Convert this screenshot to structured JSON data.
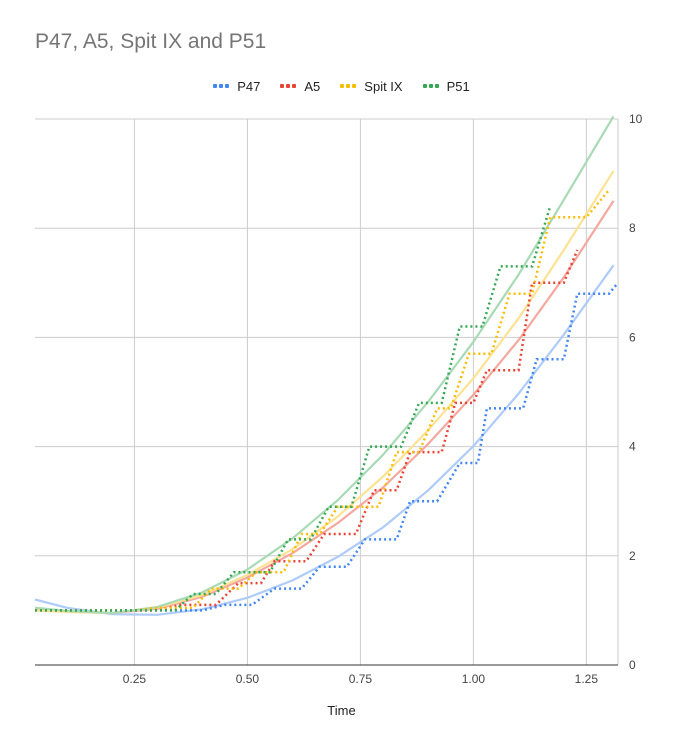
{
  "chart_data": {
    "type": "line",
    "title": "P47, A5, Spit IX and P51",
    "xlabel": "Time",
    "ylabel": "",
    "xlim": [
      0.03,
      1.32
    ],
    "ylim": [
      0,
      10
    ],
    "x_ticks": [
      0.25,
      0.5,
      0.75,
      1.0,
      1.25
    ],
    "x_tick_labels": [
      "0.25",
      "0.50",
      "0.75",
      "1.00",
      "1.25"
    ],
    "y_ticks": [
      0,
      2,
      4,
      6,
      8,
      10
    ],
    "y_tick_labels": [
      "0",
      "2",
      "4",
      "6",
      "8",
      "10"
    ],
    "grid": true,
    "legend_position": "top",
    "series": [
      {
        "name": "P47",
        "color": "#4285f4",
        "trend_color": "#aecbfa",
        "steps": [
          [
            0.03,
            1.0
          ],
          [
            0.4,
            1.0
          ],
          [
            0.45,
            1.1
          ],
          [
            0.51,
            1.1
          ],
          [
            0.56,
            1.4
          ],
          [
            0.62,
            1.4
          ],
          [
            0.66,
            1.8
          ],
          [
            0.72,
            1.8
          ],
          [
            0.76,
            2.3
          ],
          [
            0.83,
            2.3
          ],
          [
            0.86,
            3.0
          ],
          [
            0.92,
            3.0
          ],
          [
            0.97,
            3.7
          ],
          [
            1.01,
            3.7
          ],
          [
            1.03,
            4.7
          ],
          [
            1.11,
            4.7
          ],
          [
            1.14,
            5.6
          ],
          [
            1.2,
            5.6
          ],
          [
            1.23,
            6.8
          ],
          [
            1.3,
            6.8
          ],
          [
            1.32,
            7.0
          ]
        ],
        "trend": [
          [
            0.03,
            1.2
          ],
          [
            0.1,
            1.05
          ],
          [
            0.2,
            0.93
          ],
          [
            0.3,
            0.92
          ],
          [
            0.4,
            1.02
          ],
          [
            0.5,
            1.23
          ],
          [
            0.6,
            1.55
          ],
          [
            0.7,
            1.98
          ],
          [
            0.8,
            2.52
          ],
          [
            0.9,
            3.2
          ],
          [
            1.0,
            4.01
          ],
          [
            1.1,
            4.97
          ],
          [
            1.2,
            6.05
          ],
          [
            1.31,
            7.32
          ]
        ]
      },
      {
        "name": "A5",
        "color": "#ea4335",
        "trend_color": "#f4a89f",
        "steps": [
          [
            0.03,
            1.0
          ],
          [
            0.3,
            1.0
          ],
          [
            0.35,
            1.1
          ],
          [
            0.43,
            1.1
          ],
          [
            0.48,
            1.5
          ],
          [
            0.53,
            1.5
          ],
          [
            0.56,
            1.9
          ],
          [
            0.63,
            1.9
          ],
          [
            0.67,
            2.4
          ],
          [
            0.74,
            2.4
          ],
          [
            0.78,
            3.2
          ],
          [
            0.83,
            3.2
          ],
          [
            0.86,
            3.9
          ],
          [
            0.93,
            3.9
          ],
          [
            0.96,
            4.8
          ],
          [
            1.0,
            4.8
          ],
          [
            1.03,
            5.4
          ],
          [
            1.1,
            5.4
          ],
          [
            1.13,
            7.0
          ],
          [
            1.2,
            7.0
          ],
          [
            1.23,
            7.6
          ]
        ],
        "trend": [
          [
            0.03,
            1.02
          ],
          [
            0.1,
            0.98
          ],
          [
            0.2,
            0.95
          ],
          [
            0.3,
            1.03
          ],
          [
            0.4,
            1.25
          ],
          [
            0.5,
            1.6
          ],
          [
            0.6,
            2.05
          ],
          [
            0.7,
            2.6
          ],
          [
            0.8,
            3.25
          ],
          [
            0.9,
            4.05
          ],
          [
            1.0,
            4.95
          ],
          [
            1.1,
            5.95
          ],
          [
            1.2,
            7.1
          ],
          [
            1.31,
            8.5
          ]
        ]
      },
      {
        "name": "Spit IX",
        "color": "#fbbc04",
        "trend_color": "#fde293",
        "steps": [
          [
            0.03,
            1.0
          ],
          [
            0.25,
            1.0
          ],
          [
            0.3,
            1.05
          ],
          [
            0.38,
            1.05
          ],
          [
            0.42,
            1.4
          ],
          [
            0.48,
            1.4
          ],
          [
            0.52,
            1.7
          ],
          [
            0.58,
            1.7
          ],
          [
            0.62,
            2.4
          ],
          [
            0.66,
            2.4
          ],
          [
            0.7,
            2.9
          ],
          [
            0.79,
            2.9
          ],
          [
            0.83,
            3.9
          ],
          [
            0.88,
            3.9
          ],
          [
            0.92,
            4.7
          ],
          [
            0.95,
            4.7
          ],
          [
            0.99,
            5.7
          ],
          [
            1.04,
            5.7
          ],
          [
            1.08,
            6.8
          ],
          [
            1.13,
            6.8
          ],
          [
            1.17,
            8.2
          ],
          [
            1.25,
            8.2
          ],
          [
            1.3,
            8.7
          ]
        ],
        "trend": [
          [
            0.03,
            1.0
          ],
          [
            0.1,
            0.97
          ],
          [
            0.2,
            0.95
          ],
          [
            0.3,
            1.05
          ],
          [
            0.4,
            1.28
          ],
          [
            0.5,
            1.65
          ],
          [
            0.6,
            2.12
          ],
          [
            0.7,
            2.72
          ],
          [
            0.8,
            3.45
          ],
          [
            0.9,
            4.3
          ],
          [
            1.0,
            5.25
          ],
          [
            1.1,
            6.35
          ],
          [
            1.2,
            7.6
          ],
          [
            1.31,
            9.05
          ]
        ]
      },
      {
        "name": "P51",
        "color": "#34a853",
        "trend_color": "#a8dab5",
        "steps": [
          [
            0.03,
            1.0
          ],
          [
            0.34,
            1.0
          ],
          [
            0.38,
            1.3
          ],
          [
            0.43,
            1.3
          ],
          [
            0.47,
            1.7
          ],
          [
            0.55,
            1.7
          ],
          [
            0.59,
            2.3
          ],
          [
            0.64,
            2.3
          ],
          [
            0.68,
            2.9
          ],
          [
            0.73,
            2.9
          ],
          [
            0.77,
            4.0
          ],
          [
            0.84,
            4.0
          ],
          [
            0.88,
            4.8
          ],
          [
            0.93,
            4.8
          ],
          [
            0.97,
            6.2
          ],
          [
            1.02,
            6.2
          ],
          [
            1.06,
            7.3
          ],
          [
            1.13,
            7.3
          ],
          [
            1.17,
            8.4
          ]
        ],
        "trend": [
          [
            0.03,
            1.05
          ],
          [
            0.1,
            0.99
          ],
          [
            0.2,
            0.95
          ],
          [
            0.3,
            1.06
          ],
          [
            0.4,
            1.33
          ],
          [
            0.5,
            1.75
          ],
          [
            0.6,
            2.32
          ],
          [
            0.7,
            3.02
          ],
          [
            0.8,
            3.85
          ],
          [
            0.9,
            4.82
          ],
          [
            1.0,
            5.92
          ],
          [
            1.1,
            7.15
          ],
          [
            1.2,
            8.52
          ],
          [
            1.31,
            10.05
          ]
        ]
      }
    ]
  }
}
